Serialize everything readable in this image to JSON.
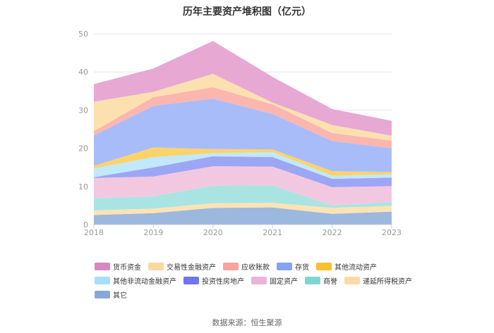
{
  "chart_data": {
    "type": "area",
    "stacked": true,
    "title": "历年主要资产堆积图（亿元）",
    "categories": [
      "2018",
      "2019",
      "2020",
      "2021",
      "2022",
      "2023"
    ],
    "ylim": [
      0,
      50
    ],
    "yticks": [
      0,
      10,
      20,
      30,
      40,
      50
    ],
    "grid": true,
    "series": [
      {
        "name": "其它",
        "color": "#9db8de",
        "values": [
          2.5,
          3.0,
          4.4,
          4.5,
          2.8,
          3.4
        ]
      },
      {
        "name": "递延所得税资产",
        "color": "#fde3b4",
        "values": [
          1.2,
          1.2,
          1.2,
          1.2,
          1.6,
          1.5
        ]
      },
      {
        "name": "商誉",
        "color": "#a9e4e2",
        "values": [
          3.2,
          3.2,
          4.6,
          4.6,
          0.6,
          1.0
        ]
      },
      {
        "name": "固定资产",
        "color": "#f2c8e0",
        "values": [
          5.3,
          5.2,
          5.1,
          4.9,
          4.8,
          4.2
        ]
      },
      {
        "name": "投资性房地产",
        "color": "#9da6f4",
        "values": [
          0.2,
          2.4,
          2.6,
          2.5,
          2.2,
          2.2
        ]
      },
      {
        "name": "其他非流动金融资产",
        "color": "#c1e8fb",
        "values": [
          2.3,
          2.7,
          0.8,
          1.3,
          0.8,
          0.9
        ]
      },
      {
        "name": "其他流动资产",
        "color": "#fcd36b",
        "values": [
          0.7,
          2.5,
          1.1,
          0.7,
          1.2,
          0.6
        ]
      },
      {
        "name": "存货",
        "color": "#a9bcfa",
        "values": [
          8.0,
          10.9,
          13.2,
          9.3,
          7.9,
          6.2
        ]
      },
      {
        "name": "应收账款",
        "color": "#fbb6b0",
        "values": [
          1.1,
          2.3,
          3.0,
          2.5,
          2.1,
          2.0
        ]
      },
      {
        "name": "交易性金融资产",
        "color": "#fde0b0",
        "values": [
          7.7,
          1.4,
          3.5,
          0.5,
          2.1,
          1.3
        ]
      },
      {
        "name": "货币资金",
        "color": "#e7a8d3",
        "values": [
          4.6,
          6.1,
          8.6,
          6.7,
          4.2,
          3.9
        ]
      }
    ]
  },
  "legend": {
    "rows": [
      [
        {
          "label": "货币资金",
          "color": "#d886c2"
        },
        {
          "label": "交易性金融资产",
          "color": "#fbd7a2"
        },
        {
          "label": "应收账款",
          "color": "#f8a39c"
        },
        {
          "label": "存货",
          "color": "#85a3f3"
        },
        {
          "label": "其他流动资产",
          "color": "#f9c12e"
        }
      ],
      [
        {
          "label": "其他非流动金融资产",
          "color": "#a8dff8"
        },
        {
          "label": "投资性房地产",
          "color": "#6f74ef"
        },
        {
          "label": "固定资产",
          "color": "#ebb4d6"
        },
        {
          "label": "商誉",
          "color": "#7ed6d3"
        },
        {
          "label": "递延所得税资产",
          "color": "#fdd9a6"
        }
      ],
      [
        {
          "label": "其它",
          "color": "#86a9d8"
        }
      ]
    ]
  },
  "source_text": "数据来源：恒生聚源"
}
